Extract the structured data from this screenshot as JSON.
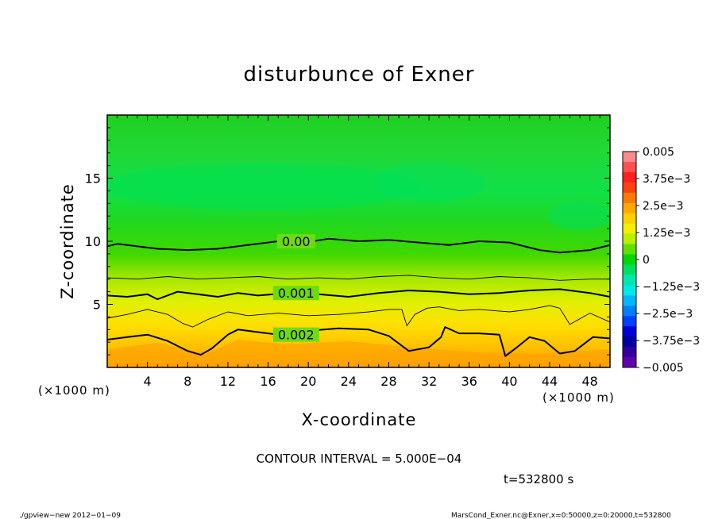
{
  "chart_data": {
    "type": "heatmap",
    "title": "disturbunce of Exner",
    "xlabel": "X-coordinate",
    "ylabel": "Z-coordinate",
    "x_unit_left": "(×1000 m)",
    "x_unit_right": "(×1000 m)",
    "xlim": [
      0,
      50
    ],
    "ylim": [
      0,
      20
    ],
    "xticks": [
      4,
      8,
      12,
      16,
      20,
      24,
      28,
      32,
      36,
      40,
      44,
      48
    ],
    "yticks": [
      5,
      10,
      15
    ],
    "colorbar": {
      "labels": [
        "0.005",
        "3.75e−3",
        "2.5e−3",
        "1.25e−3",
        "0",
        "−1.25e−3",
        "−2.5e−3",
        "−3.75e−3",
        "−0.005"
      ],
      "values": [
        0.005,
        0.00375,
        0.0025,
        0.00125,
        0,
        -0.00125,
        -0.0025,
        -0.00375,
        -0.005
      ],
      "levels": [
        0.005,
        0.0045,
        0.004,
        0.0035,
        0.003,
        0.0025,
        0.002,
        0.0015,
        0.001,
        0.0005,
        0,
        -0.0005,
        -0.001,
        -0.0015,
        -0.002,
        -0.0025,
        -0.003,
        -0.0035,
        -0.004,
        -0.0045,
        -0.005
      ],
      "colors": [
        "#ff8c8c",
        "#ff5050",
        "#ff2020",
        "#ff4010",
        "#ff7a00",
        "#ffa800",
        "#ffd000",
        "#f0f000",
        "#b8f000",
        "#60e000",
        "#00d800",
        "#00e060",
        "#00e8b0",
        "#00e8e8",
        "#00b8ff",
        "#0080ff",
        "#0040ff",
        "#0000d8",
        "#0000a0",
        "#3000a0",
        "#6000b0"
      ]
    },
    "contours": [
      {
        "label": "0.00",
        "value": 0.0,
        "x": [
          0,
          1,
          3,
          5,
          8,
          11,
          14,
          17,
          19,
          22,
          25,
          28,
          31,
          34,
          37,
          40,
          43,
          45,
          48,
          50
        ],
        "y": [
          9.6,
          9.8,
          9.6,
          9.4,
          9.3,
          9.4,
          9.7,
          10.0,
          9.8,
          10.2,
          10.0,
          10.1,
          9.9,
          9.7,
          10.0,
          9.9,
          9.3,
          9.1,
          9.3,
          9.7
        ]
      },
      {
        "label": "",
        "value": 0.0005,
        "x": [
          0,
          3,
          6,
          9,
          12,
          15,
          18,
          21,
          24,
          27,
          30,
          33,
          36,
          39,
          42,
          45,
          48,
          50
        ],
        "y": [
          7.1,
          7.0,
          7.2,
          7.0,
          7.1,
          7.2,
          7.0,
          7.1,
          7.0,
          7.2,
          7.3,
          7.1,
          7.0,
          7.2,
          7.1,
          6.9,
          7.0,
          7.0
        ]
      },
      {
        "label": "0.001",
        "value": 0.001,
        "x": [
          0,
          2,
          4,
          5,
          7,
          9,
          11,
          13,
          15,
          18,
          21,
          24,
          27,
          30,
          33,
          36,
          39,
          42,
          45,
          48,
          50
        ],
        "y": [
          5.7,
          5.6,
          5.8,
          5.4,
          6.0,
          5.8,
          5.6,
          5.9,
          5.7,
          5.9,
          5.8,
          5.6,
          5.9,
          6.1,
          6.0,
          5.8,
          5.9,
          6.1,
          6.2,
          5.9,
          5.6
        ]
      },
      {
        "label": "",
        "value": 0.0015,
        "x": [
          0,
          2,
          4,
          6,
          7.5,
          8.5,
          10,
          12,
          14,
          17,
          20,
          23,
          26,
          28,
          29.3,
          29.8,
          30.6,
          31.8,
          33,
          35,
          37,
          40,
          42,
          44,
          45,
          46,
          48,
          50
        ],
        "y": [
          3.9,
          4.2,
          4.6,
          4.2,
          3.5,
          3.2,
          3.8,
          4.4,
          4.1,
          4.3,
          4.1,
          4.2,
          4.4,
          4.6,
          4.6,
          3.3,
          4.2,
          4.7,
          4.8,
          4.5,
          4.6,
          4.4,
          4.6,
          4.9,
          4.7,
          3.4,
          4.3,
          3.6
        ]
      },
      {
        "label": "0.002",
        "value": 0.002,
        "x": [
          0,
          2,
          4,
          6,
          8,
          9.3,
          10.4,
          12,
          13,
          15,
          17,
          20,
          23,
          26,
          28,
          30,
          32,
          33.2,
          33.6,
          35,
          37,
          39,
          39.6,
          40.6,
          42,
          43.5,
          45,
          46.5,
          48.3,
          50
        ],
        "y": [
          2.2,
          2.4,
          2.6,
          2.1,
          1.3,
          1.0,
          1.5,
          2.6,
          3.0,
          2.8,
          2.6,
          2.9,
          3.1,
          3.0,
          2.5,
          1.3,
          1.6,
          2.4,
          3.2,
          2.7,
          2.7,
          2.6,
          0.9,
          1.5,
          2.4,
          2.1,
          1.1,
          1.3,
          2.4,
          2.3
        ]
      }
    ],
    "footer": {
      "interval": "CONTOUR INTERVAL = 5.000E−04",
      "time": "t=532800 s",
      "program": "./gpview−new   2012−01−09",
      "source": "MarsCond_Exner.nc@Exner,x=0:50000,z=0:20000,t=532800"
    }
  }
}
